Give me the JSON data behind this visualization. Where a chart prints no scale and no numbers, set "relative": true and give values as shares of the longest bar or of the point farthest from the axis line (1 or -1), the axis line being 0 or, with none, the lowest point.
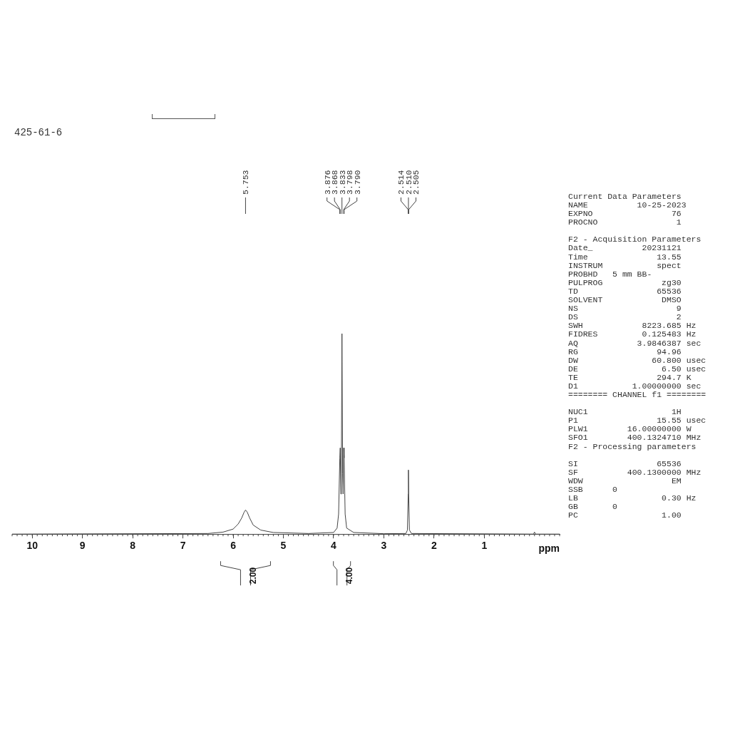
{
  "chart_data": {
    "type": "line",
    "title": "425-61-6",
    "xlabel": "ppm",
    "relative": true,
    "grid": false,
    "legend": false,
    "marker": "none",
    "line_style": "solid",
    "xlim": [
      10.4,
      -0.5
    ],
    "xticks": [
      1,
      2,
      3,
      4,
      5,
      6,
      7,
      8,
      9,
      10
    ],
    "series": [
      {
        "color": "#444444",
        "x": [
          10.4,
          6.5,
          6.2,
          6.0,
          5.9,
          5.83,
          5.78,
          5.753,
          5.72,
          5.67,
          5.6,
          5.45,
          5.2,
          4.5,
          4.0,
          3.93,
          3.9,
          3.876,
          3.868,
          3.855,
          3.845,
          3.833,
          3.82,
          3.81,
          3.798,
          3.79,
          3.77,
          3.74,
          3.6,
          3.0,
          2.56,
          2.53,
          2.514,
          2.51,
          2.505,
          2.49,
          2.45,
          0.02,
          0,
          -0.02,
          -0.5
        ],
        "values": [
          0,
          0.003,
          0.01,
          0.025,
          0.05,
          0.08,
          0.11,
          0.12,
          0.11,
          0.08,
          0.045,
          0.02,
          0.008,
          0.003,
          0.008,
          0.03,
          0.1,
          0.38,
          0.43,
          0.2,
          0.3,
          1,
          0.3,
          0.2,
          0.43,
          0.38,
          0.1,
          0.03,
          0.008,
          0.002,
          0.003,
          0.02,
          0.2,
          0.32,
          0.2,
          0.02,
          0.003,
          0,
          0.01,
          0,
          0
        ]
      }
    ],
    "annotations": [
      {
        "text": "5.753",
        "x": 5.753
      },
      {
        "text": "3.876",
        "x": 3.876
      },
      {
        "text": "3.868",
        "x": 3.868
      },
      {
        "text": "3.833",
        "x": 3.833
      },
      {
        "text": "3.798",
        "x": 3.798
      },
      {
        "text": "3.790",
        "x": 3.79
      },
      {
        "text": "2.514",
        "x": 2.514
      },
      {
        "text": "2.510",
        "x": 2.51
      },
      {
        "text": "2.505",
        "x": 2.505
      },
      "2.00",
      "4.00",
      "Current Data Parameters",
      "NAME          10-25-2023",
      "EXPNO                76",
      "PROCNO                1",
      "F2 - Acquisition Parameters",
      "Date_          20231121",
      "Time              13.55",
      "INSTRUM           spect",
      "PROBHD   5 mm BB-",
      "PULPROG            zg30",
      "TD                65536",
      "SOLVENT            DMSO",
      "NS                    9",
      "DS                    2",
      "SWH            8223.685 Hz",
      "FIDRES         0.125483 Hz",
      "AQ            3.9846387 sec",
      "RG                94.96",
      "DW               60.800 usec",
      "DE                 6.50 usec",
      "TE                294.7 K",
      "D1           1.00000000 sec",
      "======== CHANNEL f1 ========",
      "NUC1                 1H",
      "P1                15.55 usec",
      "PLW1        16.00000000 W",
      "SFO1        400.1324710 MHz",
      "F2 - Processing parameters",
      "SI                65536",
      "SF          400.1300000 MHz",
      "WDW                  EM",
      "SSB      0",
      "LB                 0.30 Hz",
      "GB       0",
      "PC                 1.00"
    ]
  }
}
